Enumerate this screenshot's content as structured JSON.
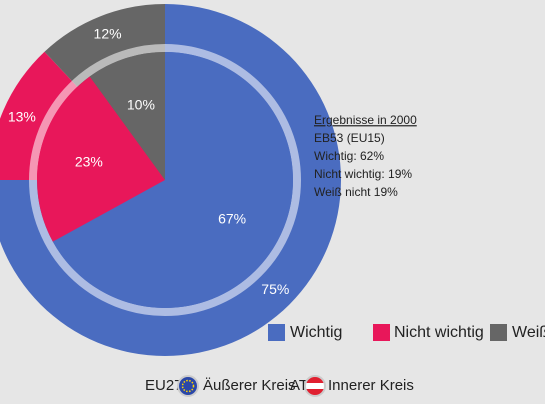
{
  "chart_data": {
    "type": "pie",
    "categories": [
      "Wichtig",
      "Nicht wichtig",
      "Weiß nicht"
    ],
    "colors": [
      "#4a6cc0",
      "#e8175a",
      "#666666"
    ],
    "series": [
      {
        "name": "EU27",
        "ring_label": "Äußerer Kreis",
        "values": [
          75,
          13,
          12
        ],
        "value_labels": [
          "75%",
          "13%",
          "12%"
        ]
      },
      {
        "name": "AT",
        "ring_label": "Innerer Kreis",
        "values": [
          67,
          23,
          10
        ],
        "value_labels": [
          "67%",
          "23%",
          "10%"
        ]
      }
    ],
    "annotation": {
      "title": "Ergebnisse in 2000",
      "lines": [
        "EB53 (EU15)",
        "Wichtig: 62%",
        "Nicht wichtig: 19%",
        "Weiß nicht 19%"
      ]
    }
  }
}
